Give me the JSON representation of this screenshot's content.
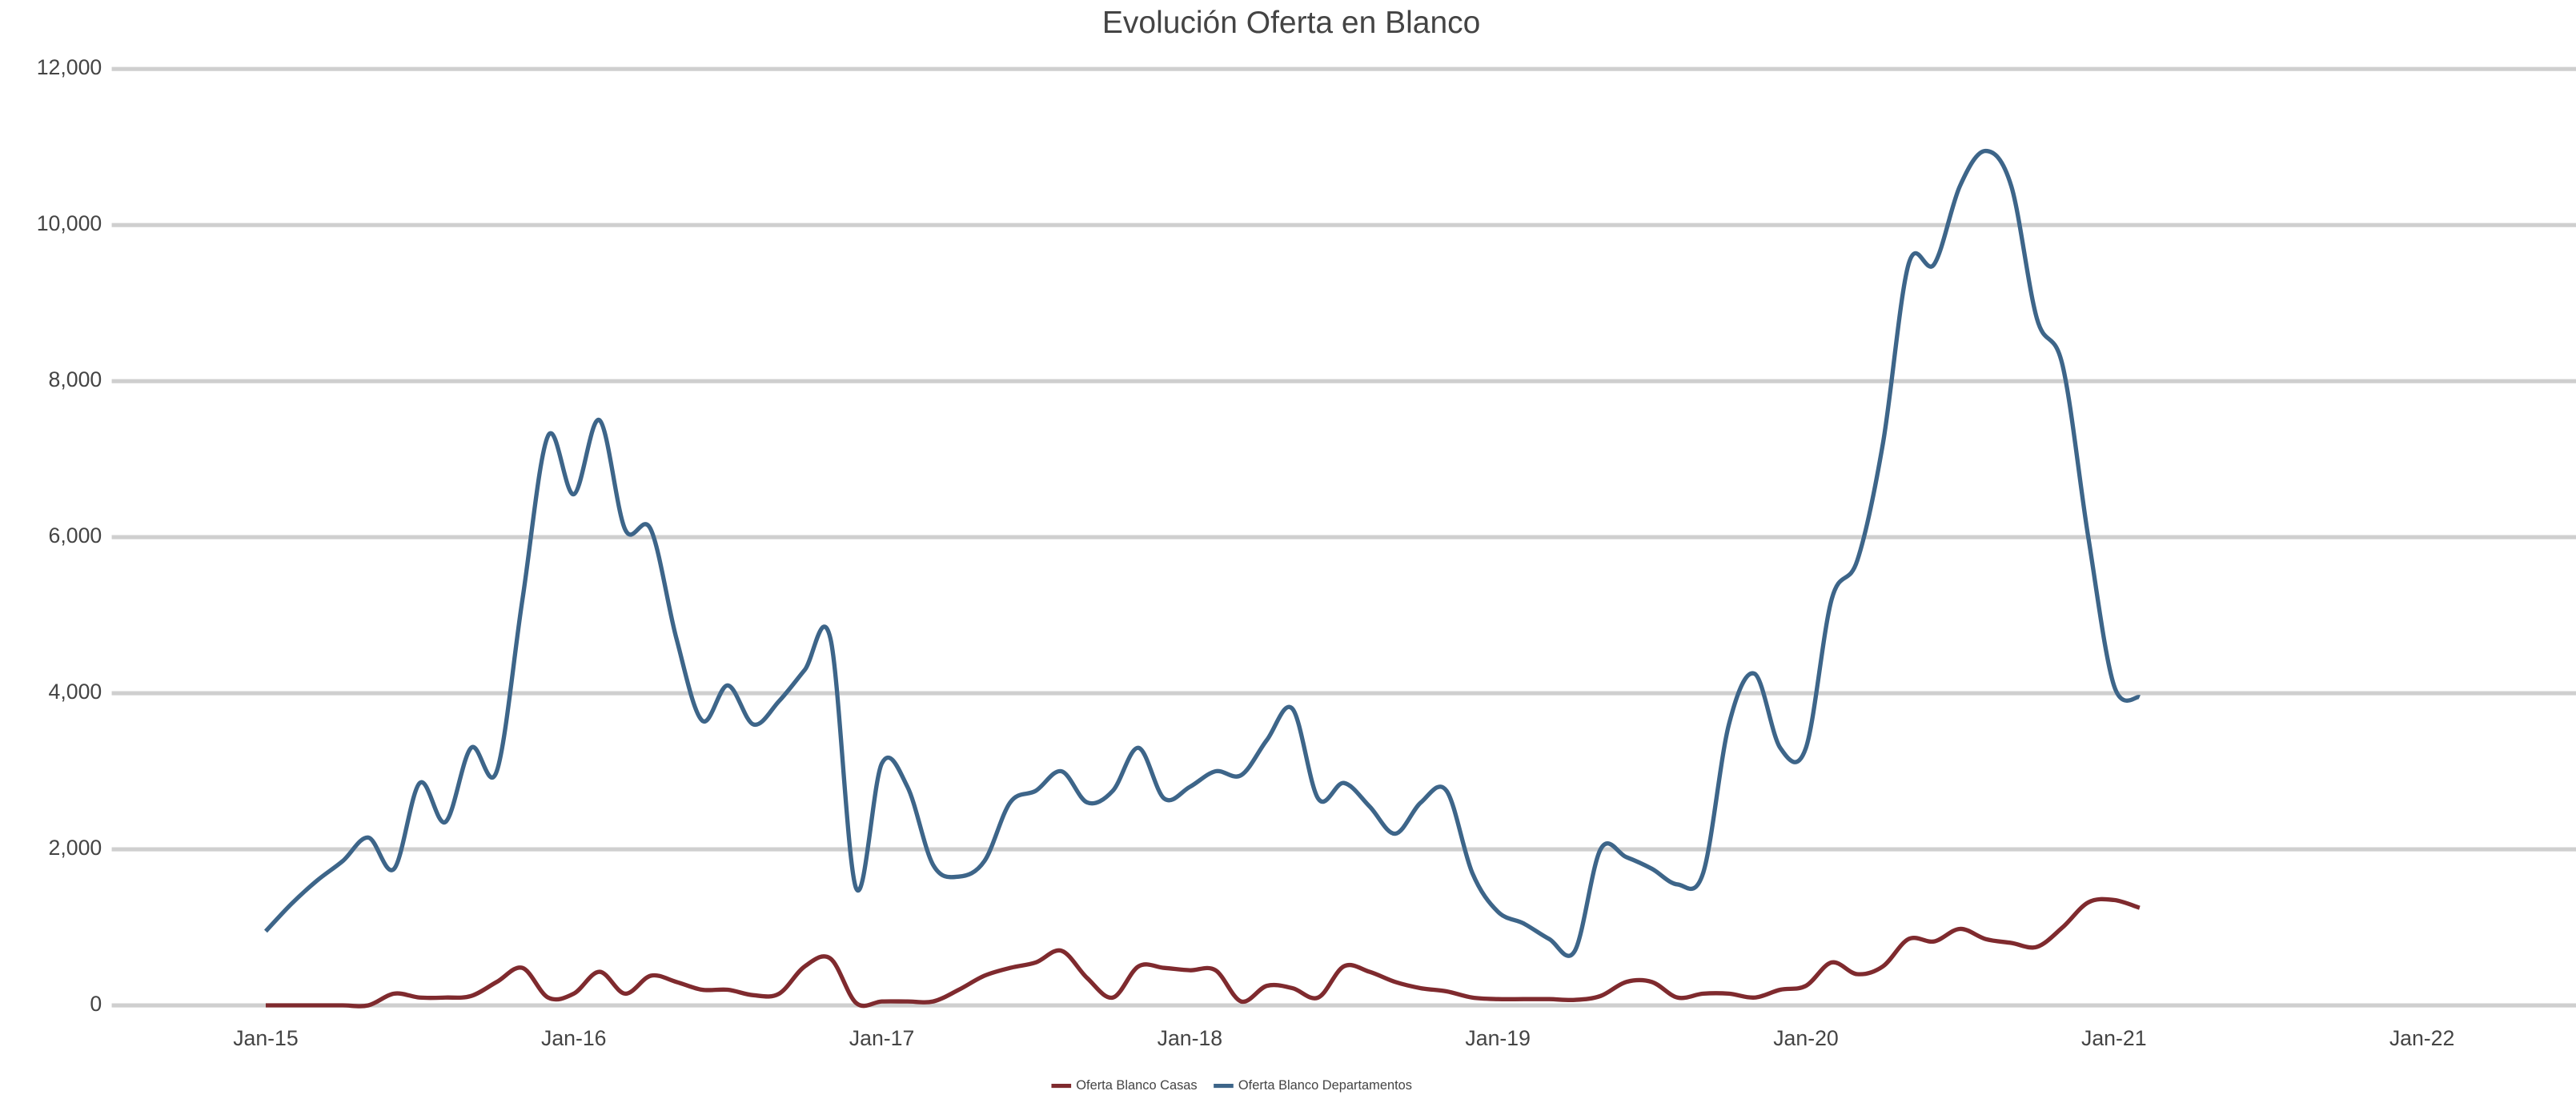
{
  "chart_data": {
    "type": "line",
    "title": "Evolución Oferta en Blanco",
    "x": [
      "Jan-15",
      "Feb-15",
      "Mar-15",
      "Apr-15",
      "May-15",
      "Jun-15",
      "Jul-15",
      "Aug-15",
      "Sep-15",
      "Oct-15",
      "Nov-15",
      "Dec-15",
      "Jan-16",
      "Feb-16",
      "Mar-16",
      "Apr-16",
      "May-16",
      "Jun-16",
      "Jul-16",
      "Aug-16",
      "Sep-16",
      "Oct-16",
      "Nov-16",
      "Dec-16",
      "Jan-17",
      "Feb-17",
      "Mar-17",
      "Apr-17",
      "May-17",
      "Jun-17",
      "Jul-17",
      "Aug-17",
      "Sep-17",
      "Oct-17",
      "Nov-17",
      "Dec-17",
      "Jan-18",
      "Feb-18",
      "Mar-18",
      "Apr-18",
      "May-18",
      "Jun-18",
      "Jul-18",
      "Aug-18",
      "Sep-18",
      "Oct-18",
      "Nov-18",
      "Dec-18",
      "Jan-19",
      "Feb-19",
      "Mar-19",
      "Apr-19",
      "May-19",
      "Jun-19",
      "Jul-19",
      "Aug-19",
      "Sep-19",
      "Oct-19",
      "Nov-19",
      "Dec-19",
      "Jan-20",
      "Feb-20",
      "Mar-20",
      "Apr-20",
      "May-20",
      "Jun-20",
      "Jul-20",
      "Aug-20",
      "Sep-20",
      "Oct-20",
      "Nov-20",
      "Dec-20",
      "Jan-21",
      "Feb-21"
    ],
    "series": [
      {
        "name": "Oferta Blanco Casas",
        "color": "#7f2a2e",
        "values": [
          0,
          0,
          0,
          0,
          0,
          150,
          100,
          100,
          120,
          300,
          480,
          100,
          150,
          430,
          150,
          380,
          300,
          200,
          200,
          130,
          150,
          500,
          600,
          30,
          50,
          50,
          50,
          200,
          380,
          480,
          550,
          700,
          350,
          100,
          500,
          480,
          450,
          450,
          50,
          250,
          220,
          100,
          500,
          430,
          300,
          220,
          180,
          100,
          80,
          80,
          80,
          70,
          120,
          300,
          300,
          100,
          150,
          150,
          100,
          200,
          250,
          550,
          400,
          500,
          850,
          820,
          980,
          850,
          800,
          750,
          1000,
          1320,
          1350,
          1250
        ]
      },
      {
        "name": "Oferta Blanco Departamentos",
        "color": "#3d6589",
        "values": [
          950,
          1300,
          1600,
          1850,
          2150,
          1750,
          2850,
          2350,
          3300,
          3000,
          5200,
          7300,
          6550,
          7500,
          6100,
          6100,
          4700,
          3650,
          4100,
          3600,
          3900,
          4300,
          4700,
          1500,
          3100,
          2800,
          1800,
          1650,
          1850,
          2600,
          2750,
          3000,
          2600,
          2750,
          3300,
          2650,
          2800,
          3000,
          2950,
          3400,
          3800,
          2650,
          2850,
          2550,
          2200,
          2600,
          2750,
          1700,
          1200,
          1050,
          850,
          700,
          2000,
          1900,
          1750,
          1550,
          1700,
          3600,
          4250,
          3300,
          3300,
          5200,
          5700,
          7200,
          9500,
          9500,
          10500,
          10950,
          10500,
          8800,
          8200,
          6000,
          4100,
          3950
        ]
      }
    ],
    "xlim": [
      "Jul-14",
      "Jul-22"
    ],
    "xticks": [
      "Jan-15",
      "Jan-16",
      "Jan-17",
      "Jan-18",
      "Jan-19",
      "Jan-20",
      "Jan-21",
      "Jan-22"
    ],
    "ylim": [
      0,
      12000
    ],
    "yticks": [
      0,
      {
        "value": 2000,
        "label": "2,000"
      },
      {
        "value": 4000,
        "label": "4,000"
      },
      {
        "value": 6000,
        "label": "6,000"
      },
      {
        "value": 8000,
        "label": "8,000"
      },
      {
        "value": 10000,
        "label": "10,000"
      },
      {
        "value": 12000,
        "label": "12,000"
      }
    ],
    "grid": true,
    "legend": "bottom"
  }
}
